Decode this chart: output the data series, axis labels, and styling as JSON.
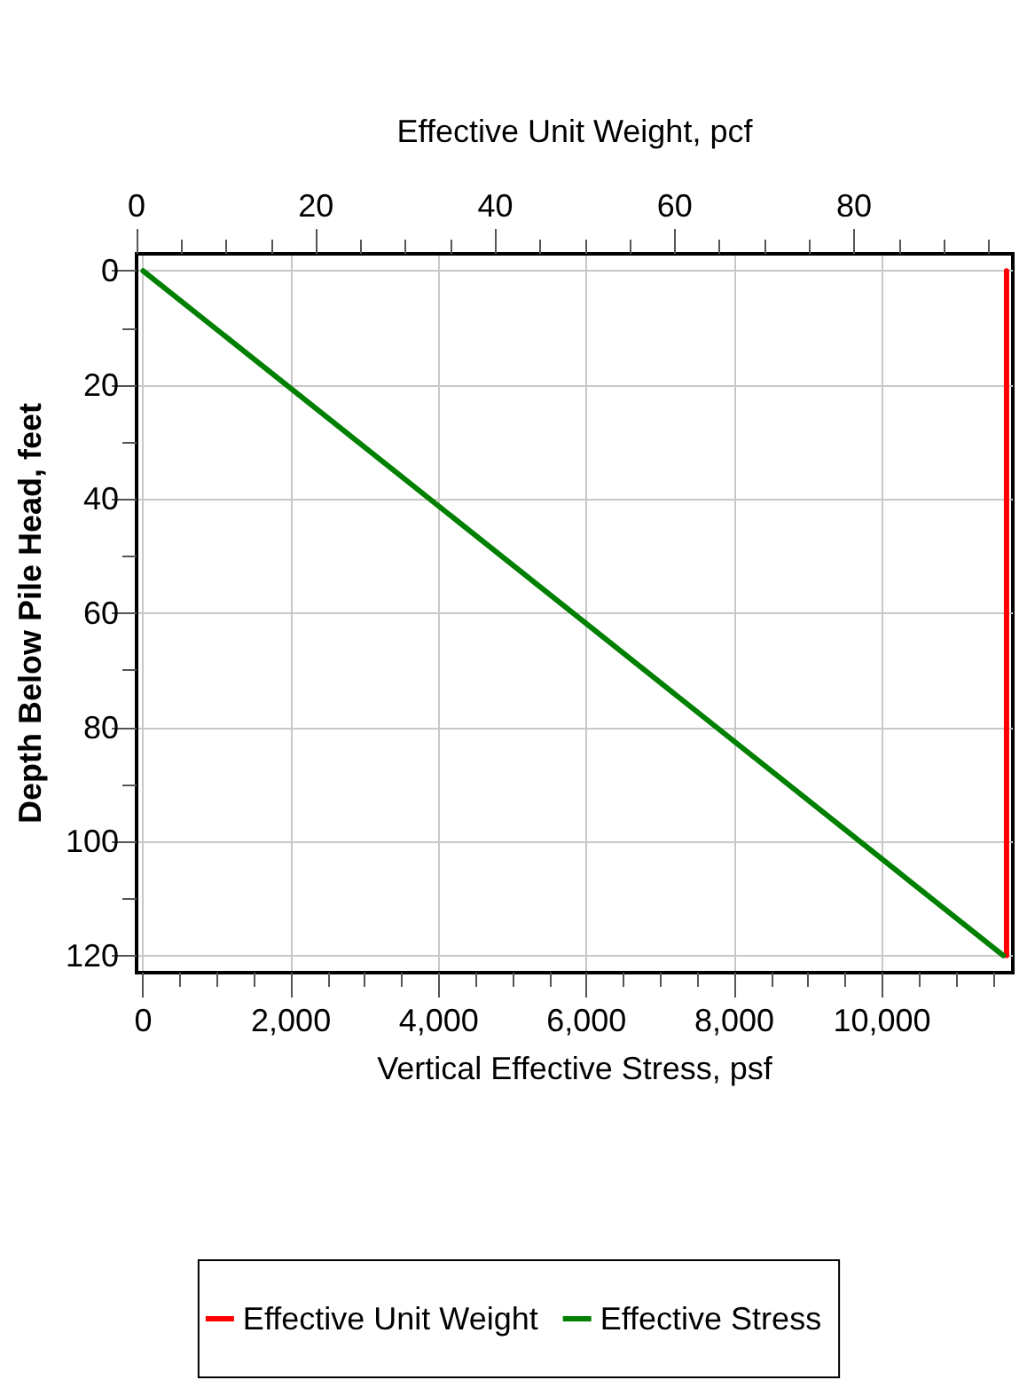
{
  "chart_data": {
    "type": "line",
    "xlabel": "Vertical Effective Stress, psf",
    "x2label": "Effective Unit Weight, pcf",
    "ylabel": "Depth Below Pile Head, feet",
    "xlim": [
      -90,
      11770
    ],
    "xticks": [
      {
        "value": 0,
        "label": "0"
      },
      {
        "value": 500,
        "label": null
      },
      {
        "value": 1000,
        "label": null
      },
      {
        "value": 1500,
        "label": null
      },
      {
        "value": 2000,
        "label": "2,000"
      },
      {
        "value": 2500,
        "label": null
      },
      {
        "value": 3000,
        "label": null
      },
      {
        "value": 3500,
        "label": null
      },
      {
        "value": 4000,
        "label": "4,000"
      },
      {
        "value": 4500,
        "label": null
      },
      {
        "value": 5000,
        "label": null
      },
      {
        "value": 5500,
        "label": null
      },
      {
        "value": 6000,
        "label": "6,000"
      },
      {
        "value": 6500,
        "label": null
      },
      {
        "value": 7000,
        "label": null
      },
      {
        "value": 7500,
        "label": null
      },
      {
        "value": 8000,
        "label": "8,000"
      },
      {
        "value": 8500,
        "label": null
      },
      {
        "value": 9000,
        "label": null
      },
      {
        "value": 9500,
        "label": null
      },
      {
        "value": 10000,
        "label": "10,000"
      },
      {
        "value": 10500,
        "label": null
      },
      {
        "value": 11000,
        "label": null
      },
      {
        "value": 11500,
        "label": null
      }
    ],
    "x2lim": [
      0,
      97.7
    ],
    "x2ticks": [
      0,
      {
        "value": 5,
        "label": null
      },
      {
        "value": 10,
        "label": null
      },
      {
        "value": 15,
        "label": null
      },
      20,
      {
        "value": 25,
        "label": null
      },
      {
        "value": 30,
        "label": null
      },
      {
        "value": 35,
        "label": null
      },
      40,
      {
        "value": 45,
        "label": null
      },
      {
        "value": 50,
        "label": null
      },
      {
        "value": 55,
        "label": null
      },
      60,
      {
        "value": 65,
        "label": null
      },
      {
        "value": 70,
        "label": null
      },
      {
        "value": 75,
        "label": null
      },
      80,
      {
        "value": 85,
        "label": null
      },
      {
        "value": 90,
        "label": null
      },
      {
        "value": 95,
        "label": null
      }
    ],
    "ylim": [
      123,
      -3
    ],
    "yticks": [
      0,
      {
        "value": 10,
        "label": null
      },
      20,
      {
        "value": 30,
        "label": null
      },
      40,
      {
        "value": 50,
        "label": null
      },
      60,
      {
        "value": 70,
        "label": null
      },
      80,
      {
        "value": 90,
        "label": null
      },
      100,
      {
        "value": 110,
        "label": null
      },
      120
    ],
    "grid": true,
    "legend": "bottom",
    "marker": "none",
    "line_style": "solid",
    "series": [
      {
        "name": "Effective Unit Weight",
        "color": "#ff0000",
        "axis": "x2",
        "x": [
          97,
          97
        ],
        "values": [
          0,
          120
        ]
      },
      {
        "name": "Effective Stress",
        "color": "#008000",
        "x": [
          0,
          11640
        ],
        "values": [
          0,
          120
        ]
      }
    ]
  }
}
